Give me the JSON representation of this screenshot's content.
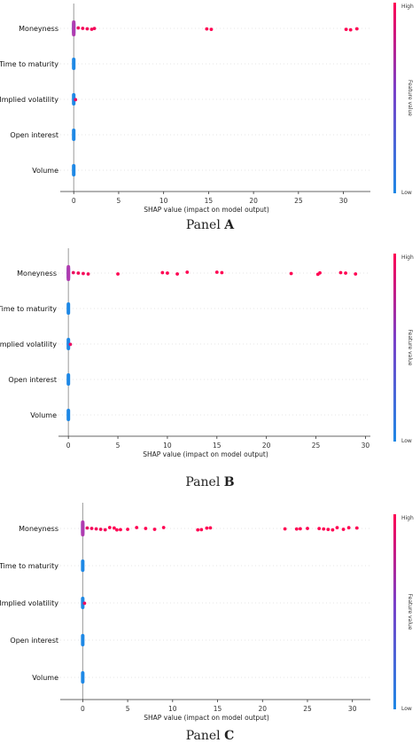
{
  "chart_data": [
    {
      "type": "scatter",
      "subtype": "shap-beeswarm",
      "panel_label": "Panel",
      "panel_letter": "A",
      "features": [
        "Moneyness",
        "Time to maturity",
        "Implied volatility",
        "Open interest",
        "Volume"
      ],
      "xlabel": "SHAP value (impact on model output)",
      "xlim": [
        -1.5,
        33
      ],
      "xticks": [
        0,
        5,
        10,
        15,
        20,
        25,
        30
      ],
      "colorbar": {
        "label": "Feature value",
        "high": "High",
        "low": "Low"
      },
      "points": {
        "Moneyness": [
          [
            0.5,
            0.9
          ],
          [
            1.0,
            0.95
          ],
          [
            1.5,
            0.95
          ],
          [
            2.0,
            0.95
          ],
          [
            2.3,
            0.95
          ],
          [
            14.8,
            1
          ],
          [
            15.3,
            1
          ],
          [
            30.3,
            1
          ],
          [
            30.8,
            1
          ],
          [
            31.5,
            1
          ]
        ],
        "Time to maturity": [],
        "Implied volatility": [
          [
            0.2,
            0.9
          ]
        ],
        "Open interest": [],
        "Volume": []
      }
    },
    {
      "type": "scatter",
      "subtype": "shap-beeswarm",
      "panel_label": "Panel",
      "panel_letter": "B",
      "features": [
        "Moneyness",
        "Time to maturity",
        "Implied volatility",
        "Open interest",
        "Volume"
      ],
      "xlabel": "SHAP value (impact on model output)",
      "xlim": [
        -1.0,
        30.5
      ],
      "xticks": [
        0,
        5,
        10,
        15,
        20,
        25,
        30
      ],
      "colorbar": {
        "label": "Feature value",
        "high": "High",
        "low": "Low"
      },
      "points": {
        "Moneyness": [
          [
            0.5,
            0.9
          ],
          [
            1.0,
            0.95
          ],
          [
            1.5,
            0.95
          ],
          [
            2.0,
            0.95
          ],
          [
            5.0,
            1
          ],
          [
            9.5,
            1
          ],
          [
            10.0,
            1
          ],
          [
            11.0,
            1
          ],
          [
            12.0,
            1
          ],
          [
            15.0,
            1
          ],
          [
            15.5,
            1
          ],
          [
            22.5,
            1
          ],
          [
            25.2,
            1
          ],
          [
            25.4,
            1
          ],
          [
            27.5,
            1
          ],
          [
            28.0,
            1
          ],
          [
            29.0,
            1
          ]
        ],
        "Time to maturity": [],
        "Implied volatility": [
          [
            0.2,
            0.9
          ]
        ],
        "Open interest": [],
        "Volume": []
      }
    },
    {
      "type": "scatter",
      "subtype": "shap-beeswarm",
      "panel_label": "Panel",
      "panel_letter": "C",
      "features": [
        "Moneyness",
        "Time to maturity",
        "Implied volatility",
        "Open interest",
        "Volume"
      ],
      "xlabel": "SHAP value (impact on model output)",
      "xlim": [
        -2.5,
        32
      ],
      "xticks": [
        0,
        5,
        10,
        15,
        20,
        25,
        30
      ],
      "colorbar": {
        "label": "Feature value",
        "high": "High",
        "low": "Low"
      },
      "points": {
        "Moneyness": [
          [
            0.5,
            0.9
          ],
          [
            1.0,
            0.95
          ],
          [
            1.5,
            0.95
          ],
          [
            2.0,
            0.95
          ],
          [
            2.5,
            0.95
          ],
          [
            3.0,
            1
          ],
          [
            3.5,
            1
          ],
          [
            3.8,
            1
          ],
          [
            4.2,
            1
          ],
          [
            5.0,
            1
          ],
          [
            6.0,
            1
          ],
          [
            7.0,
            1
          ],
          [
            8.0,
            1
          ],
          [
            9.0,
            1
          ],
          [
            12.8,
            1
          ],
          [
            13.2,
            1
          ],
          [
            13.8,
            1
          ],
          [
            14.2,
            1
          ],
          [
            22.5,
            1
          ],
          [
            23.8,
            1
          ],
          [
            24.2,
            1
          ],
          [
            25.0,
            1
          ],
          [
            26.3,
            1
          ],
          [
            26.8,
            1
          ],
          [
            27.3,
            1
          ],
          [
            27.8,
            1
          ],
          [
            28.3,
            1
          ],
          [
            29.0,
            1
          ],
          [
            29.6,
            1
          ],
          [
            30.5,
            1
          ]
        ],
        "Time to maturity": [],
        "Implied volatility": [
          [
            0.2,
            0.9
          ]
        ],
        "Open interest": [],
        "Volume": []
      }
    }
  ]
}
